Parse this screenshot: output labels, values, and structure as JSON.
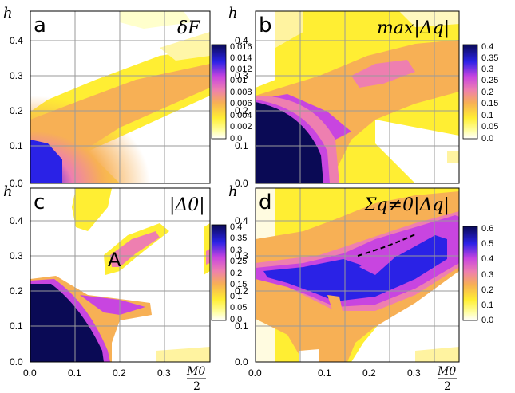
{
  "figure": {
    "y_axis_label": "h",
    "x_axis_label_num": "M0",
    "x_axis_label_den": "2",
    "x_ticks": [
      "0.0",
      "0.1",
      "0.2",
      "0.3"
    ],
    "y_ticks": [
      "0.0",
      "0.1",
      "0.2",
      "0.3",
      "0.4"
    ],
    "colors": {
      "white": "#ffffff",
      "yellow": "#ffee33",
      "orange": "#f7b055",
      "pink": "#ee7fb0",
      "magenta": "#c845e0",
      "blue": "#2a22e6",
      "navy": "#0a0a55",
      "grid": "#9a9a9a"
    }
  },
  "panels": [
    {
      "id": "a",
      "letter": "a",
      "quantity": "δF",
      "colorbar_ticks": [
        "0.016",
        "0.014",
        "0.012",
        "0.01",
        "0.008",
        "0.006",
        "0.004",
        "0.002",
        "0.0"
      ]
    },
    {
      "id": "b",
      "letter": "b",
      "quantity": "max|Δq|",
      "colorbar_ticks": [
        "0.4",
        "0.35",
        "0.3",
        "0.25",
        "0.2",
        "0.15",
        "0.1",
        "0.05",
        "0.0"
      ]
    },
    {
      "id": "c",
      "letter": "c",
      "quantity": "|Δ0|",
      "annotation": "A",
      "colorbar_ticks": [
        "0.4",
        "0.35",
        "0.3",
        "0.25",
        "0.2",
        "0.15",
        "0.1",
        "0.05",
        "0.0"
      ]
    },
    {
      "id": "d",
      "letter": "d",
      "quantity": "Σq≠0|Δq|",
      "colorbar_ticks": [
        "0.6",
        "0.5",
        "0.4",
        "0.3",
        "0.2",
        "0.1",
        "0.0"
      ]
    }
  ]
}
